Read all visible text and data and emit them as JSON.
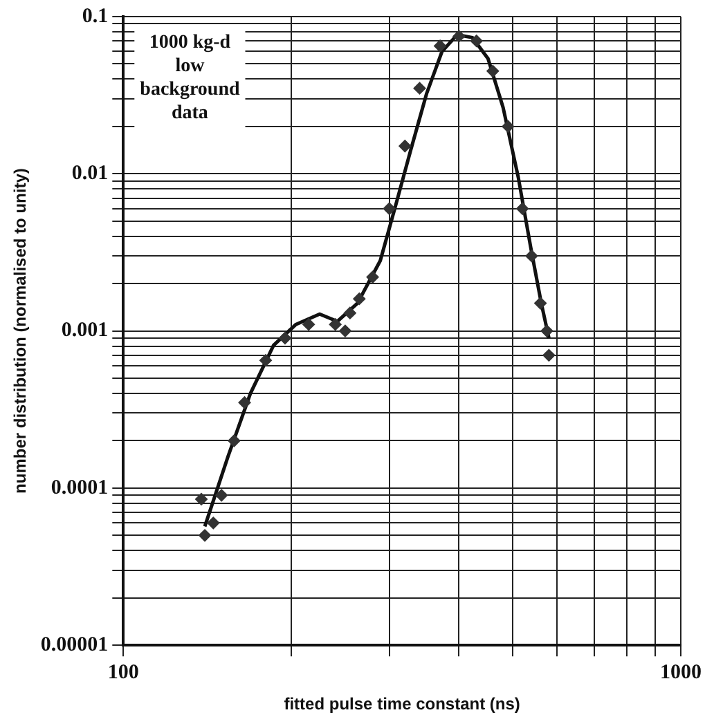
{
  "chart_data": {
    "type": "line",
    "xlabel": "fitted pulse time constant (ns)",
    "ylabel": "number distribution (normalised to unity)",
    "log": "xy",
    "grid": true,
    "legend": false,
    "annotations": [
      "1000 kg-d low background data"
    ],
    "xlim": [
      100,
      1000
    ],
    "ylim": [
      1e-05,
      0.1
    ],
    "xticks": [
      100,
      {
        "value": 200,
        "label": null
      },
      {
        "value": 300,
        "label": null
      },
      {
        "value": 400,
        "label": null
      },
      {
        "value": 500,
        "label": null
      },
      {
        "value": 600,
        "label": null
      },
      {
        "value": 700,
        "label": null
      },
      {
        "value": 800,
        "label": null
      },
      {
        "value": 900,
        "label": null
      },
      1000
    ],
    "yticks": [
      {
        "value": 1e-05,
        "label": "0.00001"
      },
      {
        "value": 2e-05,
        "label": null
      },
      {
        "value": 3e-05,
        "label": null
      },
      {
        "value": 4e-05,
        "label": null
      },
      {
        "value": 5e-05,
        "label": null
      },
      {
        "value": 6e-05,
        "label": null
      },
      {
        "value": 7e-05,
        "label": null
      },
      {
        "value": 8e-05,
        "label": null
      },
      {
        "value": 9e-05,
        "label": null
      },
      0.0001,
      {
        "value": 0.0002,
        "label": null
      },
      {
        "value": 0.0003,
        "label": null
      },
      {
        "value": 0.0004,
        "label": null
      },
      {
        "value": 0.0005,
        "label": null
      },
      {
        "value": 0.0006,
        "label": null
      },
      {
        "value": 0.0007,
        "label": null
      },
      {
        "value": 0.0008,
        "label": null
      },
      {
        "value": 0.0009,
        "label": null
      },
      0.001,
      {
        "value": 0.002,
        "label": null
      },
      {
        "value": 0.003,
        "label": null
      },
      {
        "value": 0.004,
        "label": null
      },
      {
        "value": 0.005,
        "label": null
      },
      {
        "value": 0.006,
        "label": null
      },
      {
        "value": 0.007,
        "label": null
      },
      {
        "value": 0.008,
        "label": null
      },
      {
        "value": 0.009,
        "label": null
      },
      0.01,
      {
        "value": 0.02,
        "label": null
      },
      {
        "value": 0.03,
        "label": null
      },
      {
        "value": 0.04,
        "label": null
      },
      {
        "value": 0.05,
        "label": null
      },
      {
        "value": 0.06,
        "label": null
      },
      {
        "value": 0.07,
        "label": null
      },
      {
        "value": 0.08,
        "label": null
      },
      {
        "value": 0.09,
        "label": null
      },
      0.1
    ],
    "series": [
      {
        "type": "scatter",
        "marker": "diamond",
        "color": "#333333",
        "x": [
          138,
          140,
          145,
          150,
          158,
          165,
          180,
          195,
          215,
          240,
          250,
          255,
          265,
          280,
          300,
          320,
          340,
          370,
          400,
          430,
          460,
          490,
          520,
          540,
          560,
          575,
          580
        ],
        "values": [
          8.5e-05,
          5e-05,
          6e-05,
          9e-05,
          0.0002,
          0.00035,
          0.00065,
          0.0009,
          0.0011,
          0.0011,
          0.001,
          0.0013,
          0.0016,
          0.0022,
          0.006,
          0.015,
          0.035,
          0.065,
          0.075,
          0.07,
          0.045,
          0.02,
          0.006,
          0.003,
          0.0015,
          0.001,
          0.0007
        ]
      },
      {
        "type": "line",
        "marker": "none",
        "line_style": "solid",
        "color": "#111111",
        "x": [
          140,
          154,
          169,
          186,
          204,
          225,
          242,
          263,
          289,
          308,
          328,
          350,
          373,
          397,
          423,
          451,
          480,
          511,
          538,
          562,
          580
        ],
        "values": [
          5.7e-05,
          0.000158,
          0.0004,
          0.00081,
          0.0011,
          0.00128,
          0.00115,
          0.0015,
          0.0028,
          0.0063,
          0.0143,
          0.0324,
          0.06,
          0.0766,
          0.0735,
          0.054,
          0.0264,
          0.0095,
          0.0034,
          0.0015,
          0.0009
        ]
      }
    ]
  }
}
